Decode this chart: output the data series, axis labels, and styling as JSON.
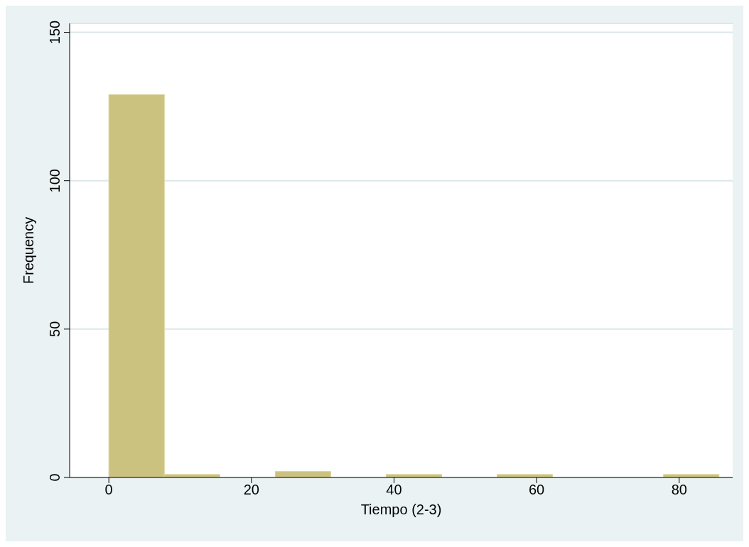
{
  "chart_data": {
    "type": "histogram",
    "xlabel": "Tiempo (2-3)",
    "ylabel": "Frequency",
    "bins": [
      0,
      7.78,
      15.56,
      23.34,
      31.12,
      38.9,
      46.68,
      54.46,
      62.24,
      70.02,
      77.8,
      85.58
    ],
    "values": [
      129,
      1,
      0,
      2,
      0,
      1,
      0,
      1,
      0,
      0,
      1
    ],
    "color": "#cbc280",
    "xlim": [
      -5.5,
      87.5
    ],
    "xticks": [
      0,
      20,
      40,
      60,
      80
    ],
    "ylim": [
      0,
      153
    ],
    "yticks": [
      0,
      50,
      100,
      150
    ],
    "grid": "y"
  }
}
